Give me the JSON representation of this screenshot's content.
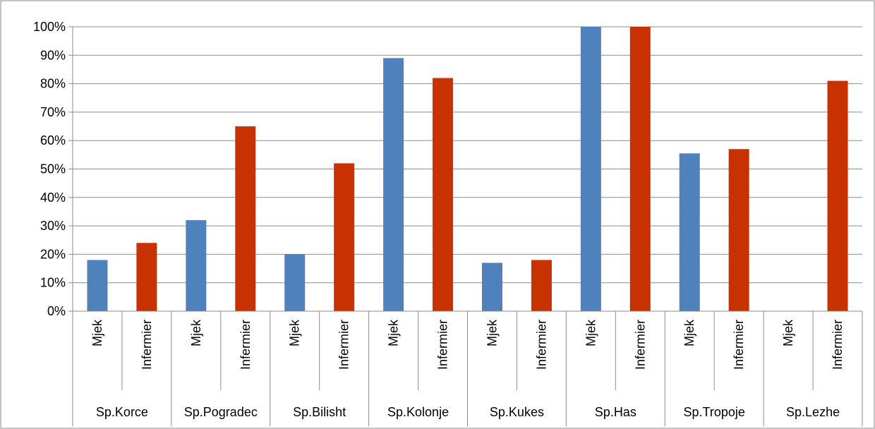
{
  "chart_data": {
    "type": "bar",
    "y_ticks": [
      "0%",
      "10%",
      "20%",
      "30%",
      "40%",
      "50%",
      "60%",
      "70%",
      "80%",
      "90%",
      "100%"
    ],
    "ylim": [
      0,
      100
    ],
    "grid": true,
    "legend": "none",
    "groups": [
      {
        "label": "Sp.Korce",
        "bars": [
          {
            "label": "Mjek",
            "value": 18
          },
          {
            "label": "Infermier",
            "value": 24
          }
        ]
      },
      {
        "label": "Sp.Pogradec",
        "bars": [
          {
            "label": "Mjek",
            "value": 32
          },
          {
            "label": "Infermier",
            "value": 65
          }
        ]
      },
      {
        "label": "Sp.Bilisht",
        "bars": [
          {
            "label": "Mjek",
            "value": 20
          },
          {
            "label": "Infermier",
            "value": 52
          }
        ]
      },
      {
        "label": "Sp.Kolonje",
        "bars": [
          {
            "label": "Mjek",
            "value": 89
          },
          {
            "label": "Infermier",
            "value": 82
          }
        ]
      },
      {
        "label": "Sp.Kukes",
        "bars": [
          {
            "label": "Mjek",
            "value": 17
          },
          {
            "label": "Infermier",
            "value": 18
          }
        ]
      },
      {
        "label": "Sp.Has",
        "bars": [
          {
            "label": "Mjek",
            "value": 100
          },
          {
            "label": "Infermier",
            "value": 100
          }
        ]
      },
      {
        "label": "Sp.Tropoje",
        "bars": [
          {
            "label": "Mjek",
            "value": 55.5
          },
          {
            "label": "Infermier",
            "value": 57
          }
        ]
      },
      {
        "label": "Sp.Lezhe",
        "bars": [
          {
            "label": "Mjek",
            "value": 0
          },
          {
            "label": "Infermier",
            "value": 81
          }
        ]
      }
    ],
    "colors": {
      "Mjek": "#4f81bd",
      "Infermier": "#c83200"
    }
  }
}
